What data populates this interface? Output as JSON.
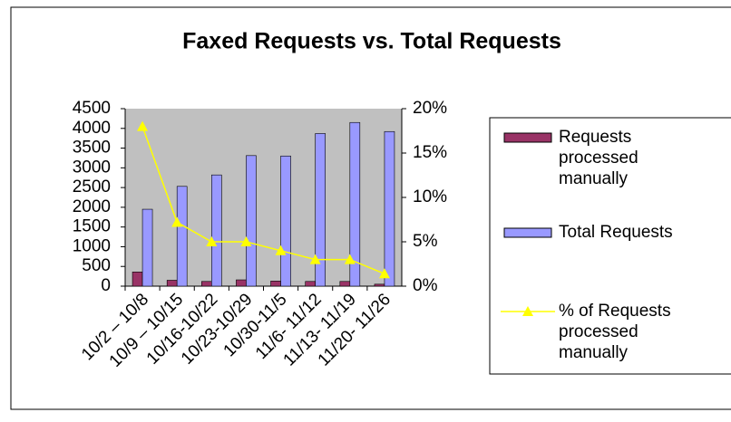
{
  "chart_data": {
    "type": "bar_line",
    "title": "Faxed Requests vs. Total Requests",
    "categories": [
      "10/2 – 10/8",
      "10/9 – 10/15",
      "10/16-10/22",
      "10/23-10/29",
      "10/30-11/5",
      "11/6- 11/12",
      "11/13- 11/19",
      "11/20- 11/26"
    ],
    "series": [
      {
        "name": "Requests processed manually",
        "color": "#993366",
        "type": "bar",
        "values": [
          360,
          150,
          120,
          160,
          130,
          120,
          120,
          50
        ]
      },
      {
        "name": "Total Requests",
        "color": "#9999ff",
        "type": "bar",
        "values": [
          1950,
          2530,
          2820,
          3310,
          3300,
          3870,
          4150,
          3920
        ]
      },
      {
        "name": "% of Requests processed manually",
        "color": "#ffff00",
        "type": "line",
        "axis": "y2",
        "values": [
          18,
          7.2,
          5,
          5,
          4,
          3,
          3,
          1.4
        ]
      }
    ],
    "ylim": [
      0,
      4500
    ],
    "yticks": [
      0,
      500,
      1000,
      1500,
      2000,
      2500,
      3000,
      3500,
      4000,
      4500
    ],
    "y2lim": [
      0,
      20
    ],
    "y2ticks": [
      {
        "value": 0,
        "label": "0%"
      },
      {
        "value": 5,
        "label": "5%"
      },
      {
        "value": 10,
        "label": "10%"
      },
      {
        "value": 15,
        "label": "15%"
      },
      {
        "value": 20,
        "label": "20%"
      }
    ],
    "plot_background": "#c0c0c0",
    "legend": "right"
  }
}
